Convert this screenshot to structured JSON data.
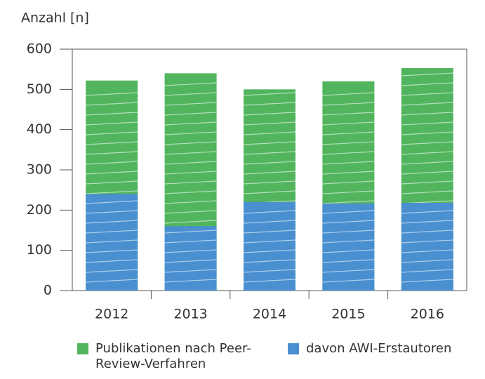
{
  "chart_data": {
    "type": "bar",
    "y_label": "Anzahl [n]",
    "categories": [
      "2012",
      "2013",
      "2014",
      "2015",
      "2016"
    ],
    "series": [
      {
        "name": "Publikationen nach Peer-Review-Verfahren",
        "color": "#52b55e",
        "values": [
          522,
          540,
          500,
          520,
          553
        ]
      },
      {
        "name": "davon AWI-Erstautoren",
        "color": "#4a8fd0",
        "values": [
          240,
          160,
          220,
          216,
          218
        ]
      }
    ],
    "ylim": [
      0,
      600
    ],
    "yticks": [
      0,
      100,
      200,
      300,
      400,
      500,
      600
    ],
    "grid": false
  }
}
